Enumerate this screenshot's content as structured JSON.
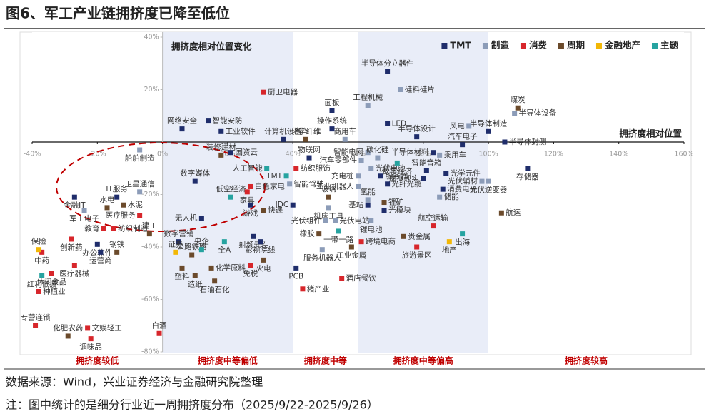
{
  "chart_data": {
    "type": "scatter",
    "title": "图6、军工产业链拥挤度已降至低位",
    "x_label": "拥挤度相对位置",
    "y_label": "拥挤度相对位置变化",
    "source": "数据来源：Wind，兴业证券经济与金融研究院整理",
    "note": "注：图中统计的是细分行业近一周拥挤度分布（2025/9/22-2025/9/26）",
    "xlim": [
      -40,
      160
    ],
    "ylim": [
      -80,
      40
    ],
    "xticks": [
      {
        "value": -40,
        "label": "-40%"
      },
      {
        "value": -20,
        "label": "-20%"
      },
      {
        "value": 0,
        "label": "0%"
      },
      {
        "value": 20,
        "label": "20%"
      },
      {
        "value": 40,
        "label": "40%"
      },
      {
        "value": 60,
        "label": "60%"
      },
      {
        "value": 80,
        "label": "80%"
      },
      {
        "value": 100,
        "label": "100%"
      },
      {
        "value": 120,
        "label": "120%"
      },
      {
        "value": 140,
        "label": "140%"
      },
      {
        "value": 160,
        "label": "160%"
      }
    ],
    "yticks": [
      {
        "value": 40,
        "label": "40%"
      },
      {
        "value": 20,
        "label": "20%"
      },
      {
        "value": -20,
        "label": "-20%"
      },
      {
        "value": -40,
        "label": "-40%"
      },
      {
        "value": -60,
        "label": "-60%"
      },
      {
        "value": -80,
        "label": "-80%"
      }
    ],
    "legend": "upper right",
    "bands": [
      {
        "label": "拥挤度较低",
        "from": -40,
        "to": 0,
        "color": "#ffffff"
      },
      {
        "label": "拥挤度中等偏低",
        "from": 0,
        "to": 40,
        "color": "#e9edf8"
      },
      {
        "label": "拥挤度中等",
        "from": 40,
        "to": 60,
        "color": "#ffffff"
      },
      {
        "label": "拥挤度中等偏高",
        "from": 60,
        "to": 100,
        "color": "#e9edf8"
      },
      {
        "label": "拥挤度较高",
        "from": 100,
        "to": 160,
        "color": "#ffffff"
      }
    ],
    "band_label_color": "#c00000",
    "series": [
      {
        "name": "TMT",
        "color": "#1f2d6b",
        "labels": [
          "半导体分立器件",
          "LED",
          "半导体设计",
          "半导体制造",
          "半导体封测",
          "网络安全",
          "智能安防",
          "工业软件",
          "计算机设备",
          "面板",
          "操作系统",
          "国资云",
          "物联网",
          "数字媒体",
          "IT服务",
          "金融IT",
          "服务器",
          "智能音箱",
          "光学元件",
          "存储器",
          "虚拟现实",
          "光纤光缆",
          "消费电子",
          "汽车电子",
          "半导体材料",
          "游戏",
          "IDC",
          "基站",
          "光模块",
          "无人机",
          "射频元件",
          "数字营销",
          "影视院线",
          "办公软件",
          "运营商",
          "PCB"
        ],
        "x": [
          69,
          69,
          78,
          100,
          105,
          6,
          14,
          18,
          37,
          52,
          52,
          21,
          45,
          10,
          -14,
          -27,
          67,
          81,
          87,
          112,
          80,
          69,
          86,
          92,
          83,
          27,
          40,
          63,
          68,
          12,
          28,
          5,
          30,
          -20,
          -19,
          41
        ],
        "values": [
          27,
          7,
          2,
          4,
          0,
          5,
          8,
          4,
          1,
          12,
          5,
          -4,
          -6,
          -15,
          -21,
          -21,
          -13,
          -11,
          -12,
          -10,
          -14,
          -16,
          -18,
          -1,
          -4,
          -24,
          -24,
          -24,
          -26,
          -29,
          -36,
          -38,
          -38,
          -39,
          -42,
          -48
        ]
      },
      {
        "name": "制造",
        "color": "#8c9cb8",
        "labels": [
          "硅料硅片",
          "工程机械",
          "半导体设备",
          "风电",
          "商用车",
          "船舶制造",
          "智能电网",
          "汽车零部件",
          "碳化硅",
          "乘用车",
          "充电桩",
          "光伏电池",
          "光伏辅材",
          "光伏逆变器",
          "工业机器人",
          "智能驾驶",
          "卫星通信",
          "军工电子",
          "氢能",
          "储能",
          "机床工具",
          "光伏组件",
          "光伏电站",
          "锂电池",
          "服务机器人"
        ],
        "x": [
          73,
          63,
          108,
          94,
          56,
          -7,
          63,
          61,
          66,
          85,
          60,
          64,
          98,
          100,
          60,
          39,
          -7,
          -24,
          63,
          85,
          51,
          50,
          53,
          64,
          49
        ],
        "values": [
          20,
          14,
          11,
          6,
          1,
          -3,
          -4,
          -7,
          -6,
          -5,
          -13,
          -10,
          -15,
          -15,
          -17,
          -16,
          -19,
          -26,
          -22,
          -21,
          -25,
          -30,
          -30,
          -30,
          -41
        ]
      },
      {
        "name": "消费",
        "color": "#d7262b",
        "labels": [
          "厨卫电器",
          "纺织服饰",
          "白色家电",
          "家具",
          "医疗服务",
          "航空运输",
          "教育",
          "纺织制造",
          "跨境电商",
          "旅游景区",
          "创新药",
          "中药",
          "医疗器械",
          "休闲食品",
          "免税",
          "酒店餐饮",
          "种植业",
          "猪产业",
          "专营连锁",
          "文娱轻工",
          "调味品",
          "白酒"
        ],
        "x": [
          31,
          41,
          27,
          26,
          -7,
          83,
          -18,
          -15,
          61,
          78,
          -28,
          -37,
          -27,
          -34,
          27,
          55,
          -38,
          43,
          -39,
          -23,
          -22,
          -1
        ],
        "values": [
          19,
          -10,
          -17,
          -19,
          -28,
          -32,
          -33,
          -33,
          -38,
          -40,
          -37,
          -42,
          -47,
          -50,
          -47,
          -52,
          -57,
          -56,
          -70,
          -71,
          -75,
          -73
        ]
      },
      {
        "name": "周期",
        "color": "#6b4a2b",
        "labels": [
          "煤炭",
          "化学纤维",
          "装修建材",
          "水电",
          "水泥",
          "玻璃",
          "锂矿",
          "航运",
          "快递",
          "建工",
          "橡胶",
          "贵金属",
          "钢铁",
          "公路铁路",
          "工业金属",
          "塑料",
          "化学原料",
          "火电",
          "造纸",
          "石油石化",
          "化肥农药"
        ],
        "x": [
          109,
          44,
          18,
          -17,
          -12,
          51,
          68,
          104,
          31,
          -4,
          48,
          74,
          -14,
          9,
          58,
          6,
          15,
          31,
          10,
          16,
          -29
        ],
        "values": [
          13,
          1,
          -5,
          -25,
          -24,
          -21,
          -23,
          -27,
          -26,
          -35,
          -35,
          -36,
          -42,
          -43,
          -40,
          -48,
          -48,
          -45,
          -51,
          -53,
          -74
        ]
      },
      {
        "name": "金融地产",
        "color": "#f2b705",
        "labels": [
          "地产",
          "保险",
          "证券"
        ],
        "x": [
          88,
          -38,
          4
        ],
        "values": [
          -38,
          -41,
          -42
        ]
      },
      {
        "name": "主题",
        "color": "#26a3a0",
        "labels": [
          "数字经济",
          "人工智能",
          "TMT",
          "低空经济",
          "央企",
          "全A",
          "一带一路",
          "出海",
          "红利低波"
        ],
        "x": [
          72,
          32,
          38,
          21,
          12,
          19,
          54,
          92,
          -37
        ],
        "values": [
          -8,
          -10,
          -13,
          -21,
          -41,
          -38,
          -34,
          -35,
          -51
        ]
      }
    ]
  }
}
